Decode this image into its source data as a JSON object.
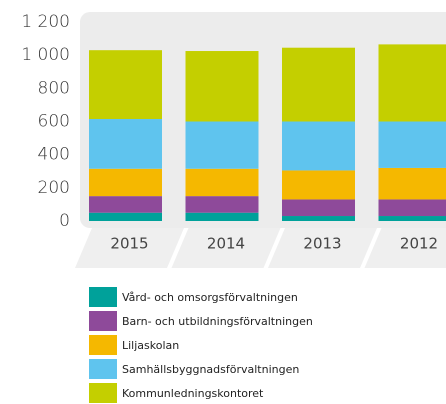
{
  "chart_data": {
    "type": "bar",
    "stacked": true,
    "categories": [
      "2015",
      "2014",
      "2013",
      "2012"
    ],
    "series": [
      {
        "name": "Vård- och omsorgsförvaltningen",
        "color": "#00a19a",
        "values": [
          50,
          50,
          30,
          30
        ]
      },
      {
        "name": "Barn- och utbildningsförvaltningen",
        "color": "#8e4a9a",
        "values": [
          100,
          100,
          100,
          100
        ]
      },
      {
        "name": "Liljaskolan",
        "color": "#f5b800",
        "values": [
          165,
          165,
          175,
          190
        ]
      },
      {
        "name": "Samhällsbyggnadsförvaltningen",
        "color": "#5fc4ee",
        "values": [
          300,
          285,
          295,
          280
        ]
      },
      {
        "name": "Kommunledningskontoret",
        "color": "#c4cf00",
        "values": [
          415,
          425,
          445,
          465
        ]
      }
    ],
    "ylim": [
      0,
      1200
    ],
    "yticks": [
      0,
      200,
      400,
      600,
      800,
      {
        "value": 1000,
        "label": "1 000"
      },
      {
        "value": 1200,
        "label": "1 200"
      }
    ]
  }
}
